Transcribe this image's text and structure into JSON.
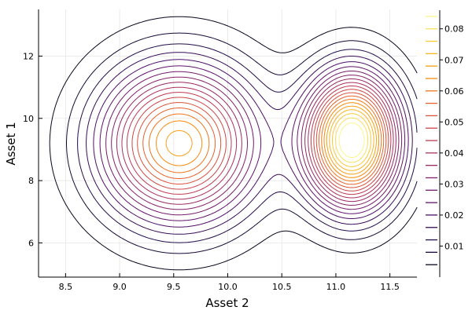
{
  "chart_data": {
    "type": "contour",
    "xlabel": "Asset 2",
    "ylabel": "Asset 1",
    "xlim": [
      8.25,
      11.75
    ],
    "ylim": [
      4.9,
      13.5
    ],
    "xticks": [
      {
        "value": 8.5,
        "label": "8.5"
      },
      {
        "value": 9.0,
        "label": "9.0"
      },
      {
        "value": 9.5,
        "label": "9.5"
      },
      {
        "value": 10.0,
        "label": "10.0"
      },
      {
        "value": 10.5,
        "label": "10.5"
      },
      {
        "value": 11.0,
        "label": "11.0"
      },
      {
        "value": 11.5,
        "label": "11.5"
      }
    ],
    "yticks": [
      {
        "value": 6,
        "label": "6"
      },
      {
        "value": 8,
        "label": "8"
      },
      {
        "value": 10,
        "label": "10"
      },
      {
        "value": 12,
        "label": "12"
      }
    ],
    "grid": true,
    "colormap": "inferno",
    "colorbar": {
      "range": [
        0,
        0.086
      ],
      "level_step": 0.004,
      "ticks": [
        {
          "value": 0.01,
          "label": "0.01"
        },
        {
          "value": 0.02,
          "label": "0.02"
        },
        {
          "value": 0.03,
          "label": "0.03"
        },
        {
          "value": 0.04,
          "label": "0.04"
        },
        {
          "value": 0.05,
          "label": "0.05"
        },
        {
          "value": 0.06,
          "label": "0.06"
        },
        {
          "value": 0.07,
          "label": "0.07"
        },
        {
          "value": 0.08,
          "label": "0.08"
        }
      ]
    },
    "density_components": [
      {
        "weight": 0.07,
        "mean_x": 9.55,
        "mean_y": 9.2,
        "sd_x": 0.5,
        "sd_y": 1.7
      },
      {
        "weight": 0.09,
        "mean_x": 11.15,
        "mean_y": 9.3,
        "sd_x": 0.3,
        "sd_y": 1.45
      }
    ]
  }
}
